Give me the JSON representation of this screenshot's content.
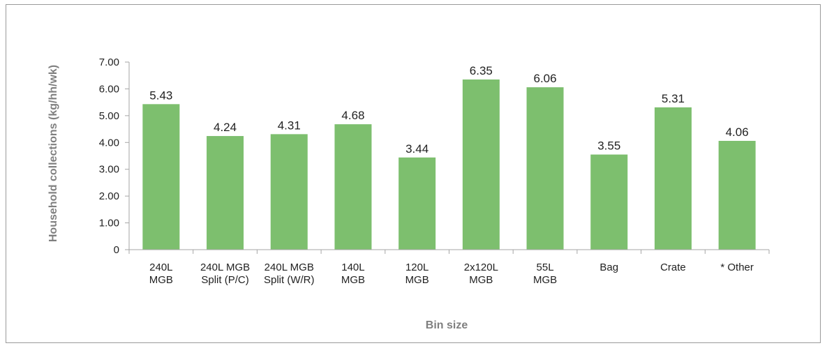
{
  "chart_data": {
    "type": "bar",
    "categories": [
      [
        "240L",
        "MGB"
      ],
      [
        "240L MGB",
        "Split (P/C)"
      ],
      [
        "240L MGB",
        "Split (W/R)"
      ],
      [
        "140L",
        "MGB"
      ],
      [
        "120L",
        "MGB"
      ],
      [
        "2x120L",
        "MGB"
      ],
      [
        "55L",
        "MGB"
      ],
      [
        "Bag"
      ],
      [
        "Crate"
      ],
      [
        "* Other"
      ]
    ],
    "values": [
      5.43,
      4.24,
      4.31,
      4.68,
      3.44,
      6.35,
      6.06,
      3.55,
      5.31,
      4.06
    ],
    "value_labels": [
      "5.43",
      "4.24",
      "4.31",
      "4.68",
      "3.44",
      "6.35",
      "6.06",
      "3.55",
      "5.31",
      "4.06"
    ],
    "xlabel": "Bin size",
    "ylabel": "Household collections (kg/hh/wk)",
    "ylim": [
      0,
      7
    ],
    "yticks": [
      0,
      1,
      2,
      3,
      4,
      5,
      6,
      7
    ],
    "ytick_labels": [
      "0",
      "1.00",
      "2.00",
      "3.00",
      "4.00",
      "5.00",
      "6.00",
      "7.00"
    ],
    "bar_color": "#7dbf6e",
    "axis_color": "#a6a6a6",
    "grid": false,
    "legend": "none"
  }
}
